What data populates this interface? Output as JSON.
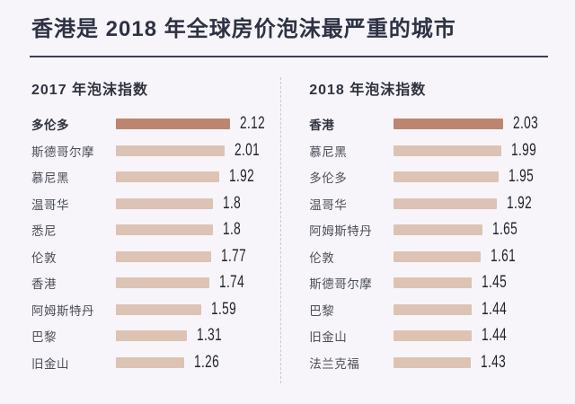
{
  "title": "香港是 2018 年全球房价泡沫最严重的城市",
  "colors": {
    "background": "#f7f5f9",
    "title_text": "#2e3243",
    "title_rule": "#3d4150",
    "panel_divider": "#c9c9d6",
    "city_text": "#4b4d58",
    "value_text": "#23252e",
    "bar_highlight": "#bd8570",
    "bar_normal": "#dcc3b4"
  },
  "chart_data": [
    {
      "type": "bar",
      "orientation": "horizontal",
      "title": "2017 年泡沫指数",
      "categories": [
        "多伦多",
        "斯德哥尔摩",
        "慕尼黑",
        "温哥华",
        "悉尼",
        "伦敦",
        "香港",
        "阿姆斯特丹",
        "巴黎",
        "旧金山"
      ],
      "values": [
        2.12,
        2.01,
        1.92,
        1.8,
        1.8,
        1.77,
        1.74,
        1.59,
        1.31,
        1.26
      ],
      "value_labels": [
        "2.12",
        "2.01",
        "1.92",
        "1.8",
        "1.8",
        "1.77",
        "1.74",
        "1.59",
        "1.31",
        "1.26"
      ],
      "highlight_index": 0,
      "xlim": [
        0,
        2.2
      ],
      "grid": false,
      "legend": false
    },
    {
      "type": "bar",
      "orientation": "horizontal",
      "title": "2018 年泡沫指数",
      "categories": [
        "香港",
        "慕尼黑",
        "多伦多",
        "温哥华",
        "阿姆斯特丹",
        "伦敦",
        "斯德哥尔摩",
        "巴黎",
        "旧金山",
        "法兰克福"
      ],
      "values": [
        2.03,
        1.99,
        1.95,
        1.92,
        1.65,
        1.61,
        1.45,
        1.44,
        1.44,
        1.43
      ],
      "value_labels": [
        "2.03",
        "1.99",
        "1.95",
        "1.92",
        "1.65",
        "1.61",
        "1.45",
        "1.44",
        "1.44",
        "1.43"
      ],
      "highlight_index": 0,
      "xlim": [
        0,
        2.2
      ],
      "grid": false,
      "legend": false
    }
  ]
}
